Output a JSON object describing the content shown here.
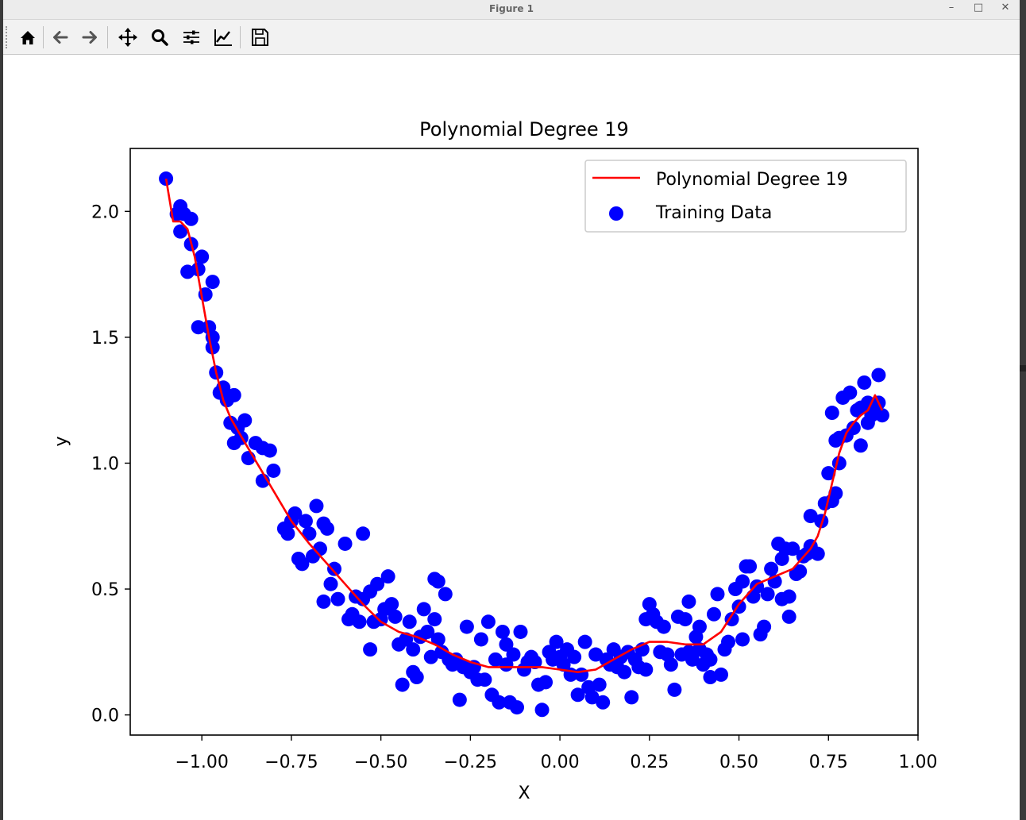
{
  "window": {
    "title": "Figure 1",
    "minimize_glyph": "–",
    "maximize_glyph": "□",
    "close_glyph": "✕"
  },
  "toolbar": {
    "buttons": [
      "home-icon",
      "back-arrow-icon",
      "forward-arrow-icon",
      "pan-move-icon",
      "zoom-magnifier-icon",
      "configure-subplots-icon",
      "edit-axis-icon",
      "save-figure-icon"
    ]
  },
  "colors": {
    "line": "#ff0000",
    "points": "#0000ff",
    "axes": "#000000",
    "background": "#ffffff"
  },
  "chart_data": {
    "type": "scatter",
    "title": "Polynomial Degree 19",
    "xlabel": "X",
    "ylabel": "y",
    "xlim": [
      -1.2,
      1.0
    ],
    "ylim": [
      -0.08,
      2.25
    ],
    "xticks": [
      -1.0,
      -0.75,
      -0.5,
      -0.25,
      0.0,
      0.25,
      0.5,
      0.75,
      1.0
    ],
    "xtick_labels": [
      "−1.00",
      "−0.75",
      "−0.50",
      "−0.25",
      "0.00",
      "0.25",
      "0.50",
      "0.75",
      "1.00"
    ],
    "yticks": [
      0.0,
      0.5,
      1.0,
      1.5,
      2.0
    ],
    "ytick_labels": [
      "0.0",
      "0.5",
      "1.0",
      "1.5",
      "2.0"
    ],
    "grid": false,
    "legend_position": "top-right",
    "legend": [
      {
        "label": "Polynomial Degree 19",
        "kind": "line",
        "color": "#ff0000"
      },
      {
        "label": "Training Data",
        "kind": "point",
        "color": "#0000ff"
      }
    ],
    "series": [
      {
        "name": "Polynomial Degree 19",
        "kind": "line",
        "color": "#ff0000",
        "x": [
          -1.1,
          -1.08,
          -1.06,
          -1.04,
          -1.02,
          -1.0,
          -0.98,
          -0.96,
          -0.94,
          -0.92,
          -0.9,
          -0.85,
          -0.8,
          -0.75,
          -0.7,
          -0.65,
          -0.6,
          -0.55,
          -0.5,
          -0.45,
          -0.4,
          -0.35,
          -0.3,
          -0.25,
          -0.2,
          -0.15,
          -0.1,
          -0.05,
          0.0,
          0.05,
          0.1,
          0.15,
          0.2,
          0.25,
          0.3,
          0.35,
          0.4,
          0.45,
          0.5,
          0.55,
          0.6,
          0.65,
          0.7,
          0.72,
          0.74,
          0.76,
          0.78,
          0.8,
          0.82,
          0.84,
          0.86,
          0.88,
          0.9
        ],
        "y": [
          2.13,
          1.96,
          1.96,
          1.93,
          1.82,
          1.66,
          1.5,
          1.36,
          1.25,
          1.18,
          1.13,
          1.01,
          0.89,
          0.77,
          0.68,
          0.6,
          0.52,
          0.44,
          0.37,
          0.33,
          0.31,
          0.28,
          0.24,
          0.21,
          0.19,
          0.19,
          0.19,
          0.19,
          0.18,
          0.17,
          0.18,
          0.22,
          0.26,
          0.29,
          0.29,
          0.28,
          0.28,
          0.33,
          0.44,
          0.52,
          0.55,
          0.58,
          0.66,
          0.71,
          0.8,
          0.92,
          1.04,
          1.12,
          1.16,
          1.19,
          1.21,
          1.27,
          1.21
        ]
      },
      {
        "name": "Training Data",
        "kind": "scatter",
        "color": "#0000ff",
        "points": [
          [
            -1.1,
            2.13
          ],
          [
            -1.07,
            1.99
          ],
          [
            -1.06,
            2.02
          ],
          [
            -1.05,
            1.99
          ],
          [
            -1.03,
            1.97
          ],
          [
            -1.06,
            1.92
          ],
          [
            -1.04,
            1.76
          ],
          [
            -1.03,
            1.87
          ],
          [
            -1.01,
            1.77
          ],
          [
            -1.0,
            1.82
          ],
          [
            -0.99,
            1.67
          ],
          [
            -1.01,
            1.54
          ],
          [
            -0.97,
            1.72
          ],
          [
            -0.98,
            1.54
          ],
          [
            -0.97,
            1.5
          ],
          [
            -0.97,
            1.46
          ],
          [
            -0.96,
            1.36
          ],
          [
            -0.95,
            1.28
          ],
          [
            -0.94,
            1.3
          ],
          [
            -0.93,
            1.25
          ],
          [
            -0.92,
            1.16
          ],
          [
            -0.91,
            1.27
          ],
          [
            -0.9,
            1.14
          ],
          [
            -0.91,
            1.08
          ],
          [
            -0.88,
            1.17
          ],
          [
            -0.89,
            1.1
          ],
          [
            -0.87,
            1.02
          ],
          [
            -0.85,
            1.08
          ],
          [
            -0.83,
            1.06
          ],
          [
            -0.81,
            1.05
          ],
          [
            -0.83,
            0.93
          ],
          [
            -0.8,
            0.97
          ],
          [
            -0.77,
            0.74
          ],
          [
            -0.76,
            0.72
          ],
          [
            -0.75,
            0.77
          ],
          [
            -0.74,
            0.8
          ],
          [
            -0.73,
            0.62
          ],
          [
            -0.72,
            0.6
          ],
          [
            -0.71,
            0.77
          ],
          [
            -0.7,
            0.72
          ],
          [
            -0.69,
            0.63
          ],
          [
            -0.68,
            0.83
          ],
          [
            -0.67,
            0.66
          ],
          [
            -0.66,
            0.76
          ],
          [
            -0.65,
            0.74
          ],
          [
            -0.66,
            0.45
          ],
          [
            -0.64,
            0.52
          ],
          [
            -0.63,
            0.58
          ],
          [
            -0.62,
            0.46
          ],
          [
            -0.6,
            0.68
          ],
          [
            -0.59,
            0.38
          ],
          [
            -0.58,
            0.4
          ],
          [
            -0.57,
            0.47
          ],
          [
            -0.56,
            0.37
          ],
          [
            -0.55,
            0.72
          ],
          [
            -0.55,
            0.46
          ],
          [
            -0.53,
            0.49
          ],
          [
            -0.53,
            0.26
          ],
          [
            -0.52,
            0.37
          ],
          [
            -0.51,
            0.52
          ],
          [
            -0.5,
            0.38
          ],
          [
            -0.49,
            0.42
          ],
          [
            -0.48,
            0.55
          ],
          [
            -0.47,
            0.44
          ],
          [
            -0.46,
            0.39
          ],
          [
            -0.45,
            0.28
          ],
          [
            -0.44,
            0.12
          ],
          [
            -0.43,
            0.3
          ],
          [
            -0.42,
            0.37
          ],
          [
            -0.41,
            0.26
          ],
          [
            -0.41,
            0.17
          ],
          [
            -0.4,
            0.15
          ],
          [
            -0.39,
            0.31
          ],
          [
            -0.38,
            0.42
          ],
          [
            -0.37,
            0.33
          ],
          [
            -0.36,
            0.23
          ],
          [
            -0.35,
            0.38
          ],
          [
            -0.35,
            0.54
          ],
          [
            -0.34,
            0.53
          ],
          [
            -0.34,
            0.3
          ],
          [
            -0.33,
            0.25
          ],
          [
            -0.32,
            0.48
          ],
          [
            -0.31,
            0.22
          ],
          [
            -0.3,
            0.2
          ],
          [
            -0.29,
            0.22
          ],
          [
            -0.28,
            0.06
          ],
          [
            -0.27,
            0.19
          ],
          [
            -0.26,
            0.35
          ],
          [
            -0.25,
            0.17
          ],
          [
            -0.24,
            0.19
          ],
          [
            -0.23,
            0.14
          ],
          [
            -0.22,
            0.3
          ],
          [
            -0.21,
            0.14
          ],
          [
            -0.2,
            0.37
          ],
          [
            -0.19,
            0.08
          ],
          [
            -0.18,
            0.22
          ],
          [
            -0.17,
            0.05
          ],
          [
            -0.16,
            0.33
          ],
          [
            -0.15,
            0.28
          ],
          [
            -0.15,
            0.2
          ],
          [
            -0.14,
            0.05
          ],
          [
            -0.13,
            0.24
          ],
          [
            -0.12,
            0.03
          ],
          [
            -0.11,
            0.33
          ],
          [
            -0.1,
            0.18
          ],
          [
            -0.09,
            0.21
          ],
          [
            -0.08,
            0.23
          ],
          [
            -0.07,
            0.21
          ],
          [
            -0.06,
            0.12
          ],
          [
            -0.05,
            0.02
          ],
          [
            -0.04,
            0.13
          ],
          [
            -0.03,
            0.25
          ],
          [
            -0.02,
            0.22
          ],
          [
            -0.01,
            0.29
          ],
          [
            0.0,
            0.23
          ],
          [
            0.01,
            0.2
          ],
          [
            0.02,
            0.26
          ],
          [
            0.03,
            0.16
          ],
          [
            0.04,
            0.23
          ],
          [
            0.05,
            0.08
          ],
          [
            0.06,
            0.16
          ],
          [
            0.07,
            0.29
          ],
          [
            0.08,
            0.11
          ],
          [
            0.09,
            0.07
          ],
          [
            0.1,
            0.24
          ],
          [
            0.11,
            0.12
          ],
          [
            0.12,
            0.05
          ],
          [
            0.13,
            0.22
          ],
          [
            0.14,
            0.2
          ],
          [
            0.15,
            0.26
          ],
          [
            0.16,
            0.19
          ],
          [
            0.17,
            0.23
          ],
          [
            0.18,
            0.17
          ],
          [
            0.19,
            0.25
          ],
          [
            0.2,
            0.07
          ],
          [
            0.21,
            0.22
          ],
          [
            0.22,
            0.19
          ],
          [
            0.23,
            0.26
          ],
          [
            0.24,
            0.18
          ],
          [
            0.24,
            0.38
          ],
          [
            0.25,
            0.44
          ],
          [
            0.26,
            0.4
          ],
          [
            0.27,
            0.37
          ],
          [
            0.28,
            0.25
          ],
          [
            0.29,
            0.35
          ],
          [
            0.3,
            0.24
          ],
          [
            0.31,
            0.2
          ],
          [
            0.32,
            0.1
          ],
          [
            0.33,
            0.39
          ],
          [
            0.34,
            0.24
          ],
          [
            0.35,
            0.38
          ],
          [
            0.36,
            0.45
          ],
          [
            0.36,
            0.25
          ],
          [
            0.37,
            0.22
          ],
          [
            0.38,
            0.31
          ],
          [
            0.39,
            0.35
          ],
          [
            0.39,
            0.26
          ],
          [
            0.4,
            0.2
          ],
          [
            0.41,
            0.24
          ],
          [
            0.42,
            0.22
          ],
          [
            0.42,
            0.15
          ],
          [
            0.43,
            0.4
          ],
          [
            0.44,
            0.48
          ],
          [
            0.45,
            0.16
          ],
          [
            0.46,
            0.26
          ],
          [
            0.47,
            0.29
          ],
          [
            0.48,
            0.38
          ],
          [
            0.49,
            0.5
          ],
          [
            0.5,
            0.43
          ],
          [
            0.51,
            0.53
          ],
          [
            0.51,
            0.3
          ],
          [
            0.52,
            0.59
          ],
          [
            0.53,
            0.59
          ],
          [
            0.54,
            0.47
          ],
          [
            0.55,
            0.51
          ],
          [
            0.56,
            0.32
          ],
          [
            0.57,
            0.35
          ],
          [
            0.58,
            0.48
          ],
          [
            0.59,
            0.58
          ],
          [
            0.6,
            0.53
          ],
          [
            0.61,
            0.68
          ],
          [
            0.62,
            0.46
          ],
          [
            0.62,
            0.62
          ],
          [
            0.63,
            0.66
          ],
          [
            0.64,
            0.39
          ],
          [
            0.64,
            0.47
          ],
          [
            0.65,
            0.66
          ],
          [
            0.66,
            0.56
          ],
          [
            0.67,
            0.57
          ],
          [
            0.68,
            0.63
          ],
          [
            0.69,
            0.64
          ],
          [
            0.7,
            0.67
          ],
          [
            0.7,
            0.79
          ],
          [
            0.72,
            0.64
          ],
          [
            0.73,
            0.77
          ],
          [
            0.74,
            0.84
          ],
          [
            0.75,
            0.96
          ],
          [
            0.76,
            0.85
          ],
          [
            0.77,
            0.88
          ],
          [
            0.78,
            1.0
          ],
          [
            0.76,
            1.2
          ],
          [
            0.77,
            1.09
          ],
          [
            0.78,
            1.1
          ],
          [
            0.79,
            1.26
          ],
          [
            0.8,
            1.11
          ],
          [
            0.81,
            1.28
          ],
          [
            0.82,
            1.14
          ],
          [
            0.83,
            1.21
          ],
          [
            0.84,
            1.07
          ],
          [
            0.84,
            1.22
          ],
          [
            0.85,
            1.32
          ],
          [
            0.86,
            1.24
          ],
          [
            0.86,
            1.16
          ],
          [
            0.87,
            1.19
          ],
          [
            0.88,
            1.21
          ],
          [
            0.89,
            1.24
          ],
          [
            0.89,
            1.35
          ],
          [
            0.9,
            1.19
          ]
        ]
      }
    ]
  }
}
